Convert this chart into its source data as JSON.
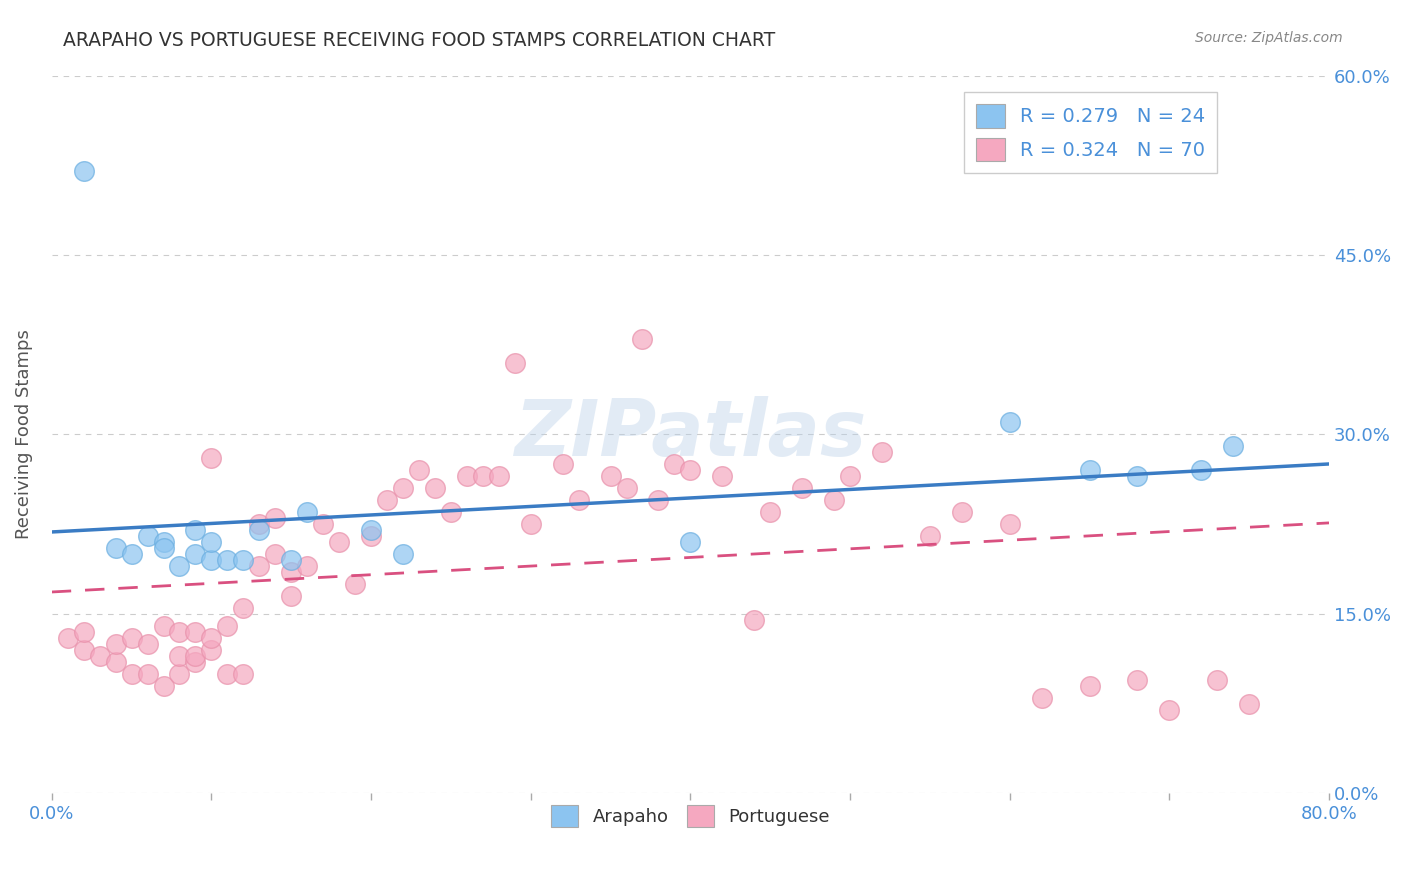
{
  "title": "ARAPAHO VS PORTUGUESE RECEIVING FOOD STAMPS CORRELATION CHART",
  "source": "Source: ZipAtlas.com",
  "ylabel": "Receiving Food Stamps",
  "xlim": [
    0.0,
    0.8
  ],
  "ylim": [
    0.0,
    0.6
  ],
  "xticks": [
    0.0,
    0.1,
    0.2,
    0.3,
    0.4,
    0.5,
    0.6,
    0.7,
    0.8
  ],
  "xticklabels_show": [
    "0.0%",
    "",
    "",
    "",
    "",
    "",
    "",
    "",
    "80.0%"
  ],
  "yticks": [
    0.0,
    0.15,
    0.3,
    0.45,
    0.6
  ],
  "yticklabels": [
    "0.0%",
    "15.0%",
    "30.0%",
    "45.0%",
    "60.0%"
  ],
  "arapaho_color": "#8cc4f0",
  "portuguese_color": "#f5a8c0",
  "arapaho_edge_color": "#6aaee0",
  "portuguese_edge_color": "#e890aa",
  "arapaho_line_color": "#3a7cc4",
  "portuguese_line_color": "#d95080",
  "R_arapaho": 0.279,
  "N_arapaho": 24,
  "R_portuguese": 0.324,
  "N_portuguese": 70,
  "arapaho_x": [
    0.02,
    0.04,
    0.05,
    0.06,
    0.07,
    0.07,
    0.08,
    0.09,
    0.09,
    0.1,
    0.1,
    0.11,
    0.12,
    0.13,
    0.15,
    0.16,
    0.2,
    0.22,
    0.4,
    0.6,
    0.65,
    0.68,
    0.72,
    0.74
  ],
  "arapaho_y": [
    0.52,
    0.205,
    0.2,
    0.215,
    0.21,
    0.205,
    0.19,
    0.22,
    0.2,
    0.195,
    0.21,
    0.195,
    0.195,
    0.22,
    0.195,
    0.235,
    0.22,
    0.2,
    0.21,
    0.31,
    0.27,
    0.265,
    0.27,
    0.29
  ],
  "portuguese_x": [
    0.01,
    0.02,
    0.02,
    0.03,
    0.04,
    0.04,
    0.05,
    0.05,
    0.06,
    0.06,
    0.07,
    0.07,
    0.08,
    0.08,
    0.08,
    0.09,
    0.09,
    0.09,
    0.1,
    0.1,
    0.1,
    0.11,
    0.11,
    0.12,
    0.12,
    0.13,
    0.13,
    0.14,
    0.14,
    0.15,
    0.15,
    0.16,
    0.17,
    0.18,
    0.19,
    0.2,
    0.21,
    0.22,
    0.23,
    0.24,
    0.25,
    0.26,
    0.27,
    0.28,
    0.29,
    0.3,
    0.32,
    0.33,
    0.35,
    0.36,
    0.37,
    0.38,
    0.39,
    0.4,
    0.42,
    0.44,
    0.45,
    0.47,
    0.49,
    0.5,
    0.52,
    0.55,
    0.57,
    0.6,
    0.62,
    0.65,
    0.68,
    0.7,
    0.73,
    0.75
  ],
  "portuguese_y": [
    0.13,
    0.12,
    0.135,
    0.115,
    0.11,
    0.125,
    0.1,
    0.13,
    0.1,
    0.125,
    0.09,
    0.14,
    0.1,
    0.115,
    0.135,
    0.11,
    0.135,
    0.115,
    0.12,
    0.28,
    0.13,
    0.1,
    0.14,
    0.1,
    0.155,
    0.19,
    0.225,
    0.23,
    0.2,
    0.165,
    0.185,
    0.19,
    0.225,
    0.21,
    0.175,
    0.215,
    0.245,
    0.255,
    0.27,
    0.255,
    0.235,
    0.265,
    0.265,
    0.265,
    0.36,
    0.225,
    0.275,
    0.245,
    0.265,
    0.255,
    0.38,
    0.245,
    0.275,
    0.27,
    0.265,
    0.145,
    0.235,
    0.255,
    0.245,
    0.265,
    0.285,
    0.215,
    0.235,
    0.225,
    0.08,
    0.09,
    0.095,
    0.07,
    0.095,
    0.075
  ],
  "watermark_text": "ZIPatlas",
  "background_color": "#ffffff",
  "grid_color": "#cccccc",
  "title_color": "#333333",
  "axis_label_color": "#555555",
  "tick_label_color": "#4a90d9",
  "legend_color": "#4a90d9"
}
